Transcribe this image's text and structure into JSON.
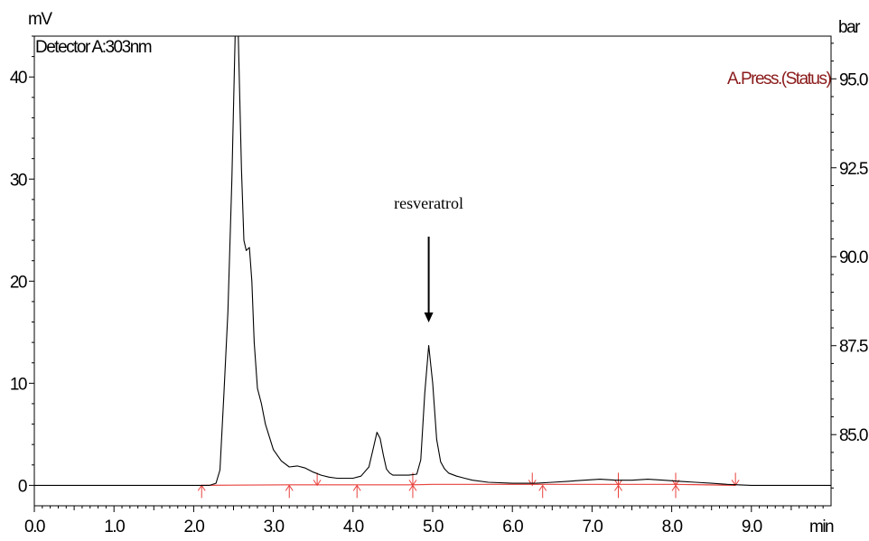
{
  "chart_data": {
    "type": "line",
    "detector": "Detector A:303nm",
    "y_unit": "mV",
    "x_unit": "min",
    "y2_unit": "bar",
    "y2_series_name": "A.Press.(Status)",
    "annotation": "resveratrol",
    "annotation_x": 4.95,
    "xlim": [
      0.0,
      10.0
    ],
    "ylim": [
      -2.0,
      44.0
    ],
    "y2lim": [
      83.0,
      96.2
    ],
    "x_ticks": [
      "0.0",
      "1.0",
      "2.0",
      "3.0",
      "4.0",
      "5.0",
      "6.0",
      "7.0",
      "8.0",
      "9.0"
    ],
    "y_ticks": [
      "0",
      "10",
      "20",
      "30",
      "40"
    ],
    "y2_ticks": [
      "85.0",
      "87.5",
      "90.0",
      "92.5",
      "95.0"
    ],
    "colors": {
      "trace": "#000000",
      "baseline": "#e8413c",
      "pressure_label": "#8b1a1a"
    },
    "series": [
      {
        "name": "Detector A:303nm",
        "x": [
          0.0,
          1.0,
          2.0,
          2.1,
          2.2,
          2.28,
          2.33,
          2.38,
          2.43,
          2.48,
          2.52,
          2.56,
          2.6,
          2.63,
          2.66,
          2.7,
          2.73,
          2.76,
          2.8,
          2.85,
          2.9,
          3.0,
          3.1,
          3.2,
          3.3,
          3.4,
          3.5,
          3.6,
          3.7,
          3.8,
          3.9,
          4.0,
          4.1,
          4.2,
          4.26,
          4.3,
          4.34,
          4.38,
          4.42,
          4.46,
          4.5,
          4.6,
          4.7,
          4.8,
          4.85,
          4.9,
          4.95,
          5.0,
          5.05,
          5.1,
          5.15,
          5.2,
          5.3,
          5.4,
          5.5,
          5.7,
          6.0,
          6.3,
          6.5,
          6.7,
          6.9,
          7.1,
          7.3,
          7.5,
          7.7,
          7.9,
          8.1,
          8.3,
          8.5,
          8.7,
          9.0,
          9.5,
          10.0
        ],
        "y": [
          0.0,
          0.0,
          0.0,
          0.0,
          0.0,
          0.2,
          1.5,
          9.0,
          17.0,
          30.0,
          44.0,
          44.0,
          31.0,
          24.0,
          23.0,
          23.3,
          20.0,
          14.0,
          9.5,
          8.0,
          6.0,
          3.5,
          2.4,
          1.8,
          1.9,
          1.7,
          1.3,
          1.0,
          0.8,
          0.7,
          0.7,
          0.7,
          0.9,
          1.8,
          3.8,
          5.2,
          4.6,
          3.0,
          1.6,
          1.2,
          1.0,
          1.0,
          1.0,
          1.1,
          2.5,
          9.0,
          13.7,
          10.0,
          4.5,
          2.3,
          1.6,
          1.2,
          0.9,
          0.7,
          0.5,
          0.3,
          0.2,
          0.2,
          0.3,
          0.4,
          0.5,
          0.6,
          0.5,
          0.5,
          0.6,
          0.5,
          0.4,
          0.3,
          0.2,
          0.1,
          0.0,
          0.0,
          0.0
        ]
      }
    ],
    "baseline": {
      "x": [
        2.1,
        3.2,
        4.75,
        5.0,
        8.05,
        8.8
      ],
      "y": [
        0.0,
        0.05,
        0.05,
        0.1,
        0.1,
        0.0
      ]
    },
    "peak_marks": [
      {
        "x": 2.1,
        "dir": "up"
      },
      {
        "x": 3.2,
        "dir": "up"
      },
      {
        "x": 3.55,
        "dir": "down"
      },
      {
        "x": 4.05,
        "dir": "up"
      },
      {
        "x": 4.75,
        "dir": "both"
      },
      {
        "x": 6.25,
        "dir": "down"
      },
      {
        "x": 6.38,
        "dir": "up"
      },
      {
        "x": 7.33,
        "dir": "both"
      },
      {
        "x": 8.05,
        "dir": "both"
      },
      {
        "x": 8.8,
        "dir": "down"
      }
    ]
  }
}
